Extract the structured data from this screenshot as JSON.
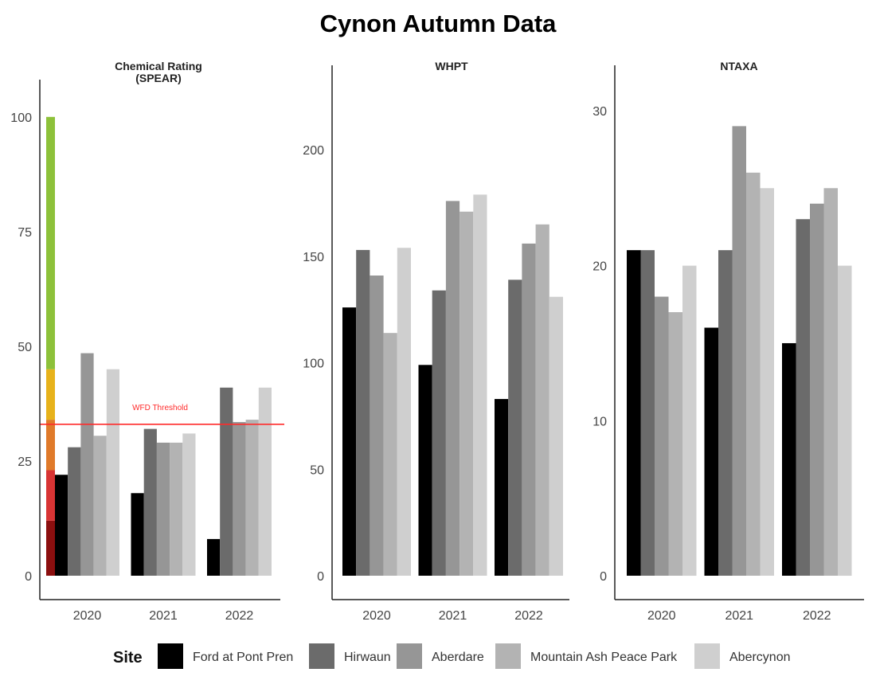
{
  "title": "Cynon Autumn Data",
  "legend": {
    "title": "Site",
    "items": [
      {
        "label": "Ford at Pont Pren",
        "color": "#000000"
      },
      {
        "label": "Hirwaun",
        "color": "#6b6b6b"
      },
      {
        "label": "Aberdare",
        "color": "#969696"
      },
      {
        "label": "Mountain Ash Peace Park",
        "color": "#b3b3b3"
      },
      {
        "label": "Abercynon",
        "color": "#cfcfcf"
      }
    ]
  },
  "chart_data": [
    {
      "type": "bar",
      "title": "Chemical Rating\n(SPEAR)",
      "categories": [
        "2020",
        "2021",
        "2022"
      ],
      "yticks": [
        0,
        25,
        50,
        75,
        100
      ],
      "ylim": [
        0,
        105
      ],
      "series": [
        {
          "name": "Ford at Pont Pren",
          "values": [
            22,
            18,
            8
          ]
        },
        {
          "name": "Hirwaun",
          "values": [
            28,
            32,
            41
          ]
        },
        {
          "name": "Aberdare",
          "values": [
            48.5,
            29,
            33.5
          ]
        },
        {
          "name": "Mountain Ash Peace Park",
          "values": [
            30.5,
            29,
            34
          ]
        },
        {
          "name": "Abercynon",
          "values": [
            45,
            31,
            41
          ]
        }
      ],
      "threshold": {
        "label": "WFD Threshold",
        "value": 33,
        "color": "#ff2b2b"
      },
      "bands": [
        {
          "from": 0,
          "to": 12,
          "color": "#8b0f0f"
        },
        {
          "from": 12,
          "to": 23,
          "color": "#d83434"
        },
        {
          "from": 23,
          "to": 34,
          "color": "#e07a2a"
        },
        {
          "from": 34,
          "to": 45,
          "color": "#e7b21b"
        },
        {
          "from": 45,
          "to": 100,
          "color": "#8dc13a"
        }
      ]
    },
    {
      "type": "bar",
      "title": "WHPT",
      "categories": [
        "2020",
        "2021",
        "2022"
      ],
      "yticks": [
        0,
        50,
        100,
        150,
        200
      ],
      "ylim": [
        0,
        233
      ],
      "series": [
        {
          "name": "Ford at Pont Pren",
          "values": [
            126,
            99,
            83
          ]
        },
        {
          "name": "Hirwaun",
          "values": [
            153,
            134,
            139
          ]
        },
        {
          "name": "Aberdare",
          "values": [
            141,
            176,
            156
          ]
        },
        {
          "name": "Mountain Ash Peace Park",
          "values": [
            114,
            171,
            165
          ]
        },
        {
          "name": "Abercynon",
          "values": [
            154,
            179,
            131
          ]
        }
      ]
    },
    {
      "type": "bar",
      "title": "NTAXA",
      "categories": [
        "2020",
        "2021",
        "2022"
      ],
      "yticks": [
        0,
        10,
        20,
        30
      ],
      "ylim": [
        0,
        32
      ],
      "series": [
        {
          "name": "Ford at Pont Pren",
          "values": [
            21,
            16,
            15
          ]
        },
        {
          "name": "Hirwaun",
          "values": [
            21,
            21,
            23
          ]
        },
        {
          "name": "Aberdare",
          "values": [
            18,
            29,
            24
          ]
        },
        {
          "name": "Mountain Ash Peace Park",
          "values": [
            17,
            26,
            25
          ]
        },
        {
          "name": "Abercynon",
          "values": [
            20,
            25,
            20
          ]
        }
      ]
    }
  ]
}
